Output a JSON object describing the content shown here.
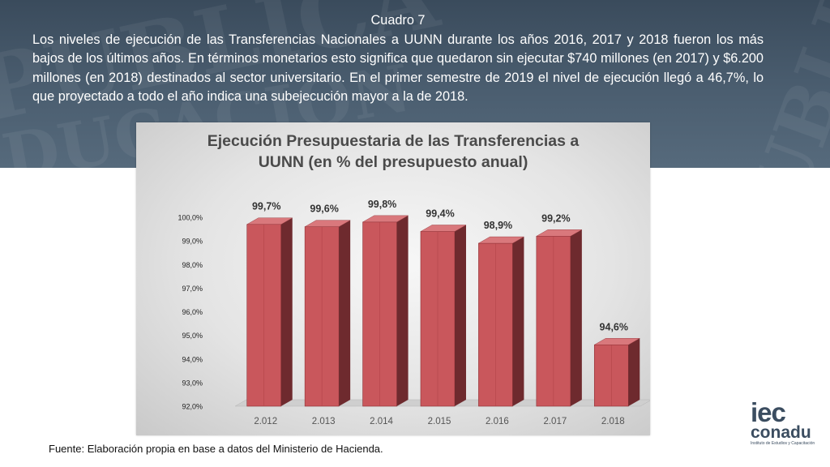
{
  "header": {
    "label": "Cuadro 7",
    "paragraph": "Los niveles de ejecución de las Transferencias Nacionales a UUNN durante los años 2016, 2017 y 2018  fueron los más bajos de los últimos años. En términos monetarios esto significa que quedaron sin ejecutar $740 millones  (en 2017) y $6.200 millones (en 2018) destinados al sector universitario. En el primer semestre de 2019 el nivel de ejecución llegó a 46,7%, lo que proyectado a todo el año indica una subejecución mayor a la de 2018."
  },
  "watermark": [
    "PUBLICA",
    "EDUCACION",
    "PUBLICA"
  ],
  "chart_data": {
    "type": "bar",
    "title": "Ejecución Presupuestaria de las Transferencias a UUNN (en % del presupuesto anual)",
    "title_lines": [
      "Ejecución Presupuestaria de las Transferencias a",
      "UUNN (en % del presupuesto anual)"
    ],
    "categories": [
      "2.012",
      "2.013",
      "2.014",
      "2.015",
      "2.016",
      "2.017",
      "2.018"
    ],
    "values": [
      99.7,
      99.6,
      99.8,
      99.4,
      98.9,
      99.2,
      94.6
    ],
    "data_labels": [
      "99,7%",
      "99,6%",
      "99,8%",
      "99,4%",
      "98,9%",
      "99,2%",
      "94,6%"
    ],
    "ylim": [
      92,
      100
    ],
    "yticks": [
      "92,0%",
      "93,0%",
      "94,0%",
      "95,0%",
      "96,0%",
      "97,0%",
      "98,0%",
      "99,0%",
      "100,0%"
    ],
    "bar_color": "#c9575c",
    "grid": false,
    "legend": "none"
  },
  "footer": {
    "source": "Fuente: Elaboración propia en base a datos del Ministerio de Hacienda."
  },
  "logo": {
    "line1": "iec",
    "line2": "conadu",
    "line3": "Instituto de Estudios y Capacitación"
  }
}
